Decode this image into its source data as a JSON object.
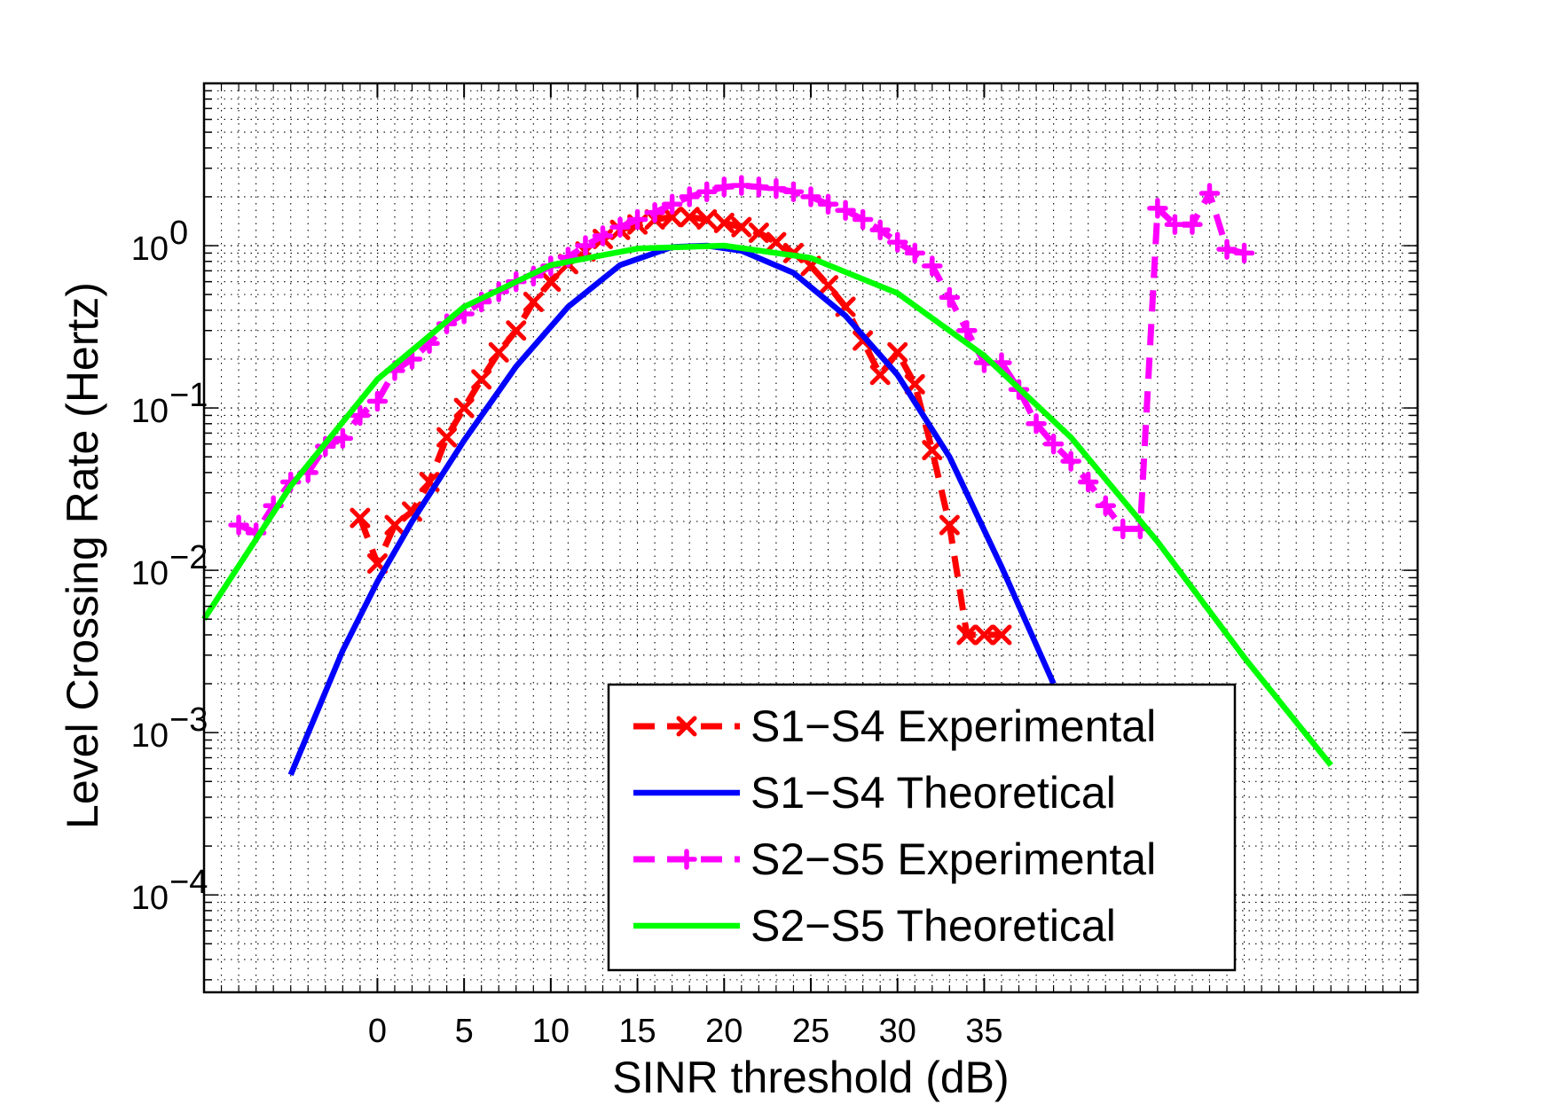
{
  "chart_data": {
    "type": "line",
    "xlabel": "SINR threshold (dB)",
    "ylabel": "Level Crossing Rate (Hertz)",
    "yscale": "log",
    "xlim": [
      -10,
      60
    ],
    "ylim_exp": [
      -4.6,
      1.0
    ],
    "grid": "major and minor, dotted",
    "legend_position": "bottom-right",
    "x_ticks": [
      {
        "value": 0,
        "label": "0"
      },
      {
        "value": 5,
        "label": "5"
      },
      {
        "value": 10,
        "label": "10"
      },
      {
        "value": 15,
        "label": "15"
      },
      {
        "value": 20,
        "label": "20"
      },
      {
        "value": 25,
        "label": "25"
      },
      {
        "value": 30,
        "label": "30"
      },
      {
        "value": 35,
        "label": "35"
      }
    ],
    "y_ticks": [
      {
        "exp": 0,
        "base": "10",
        "sup": "0"
      },
      {
        "exp": -1,
        "base": "10",
        "sup": "−1"
      },
      {
        "exp": -2,
        "base": "10",
        "sup": "−2"
      },
      {
        "exp": -3,
        "base": "10",
        "sup": "−3"
      },
      {
        "exp": -4,
        "base": "10",
        "sup": "−4"
      }
    ],
    "series": [
      {
        "name": "S1−S4 Experimental",
        "color": "#ff0000",
        "line": "dashed",
        "marker": "x",
        "x": [
          -1,
          0,
          1,
          2,
          3,
          4,
          5,
          6,
          7,
          8,
          9,
          10,
          11,
          12,
          13,
          14,
          15,
          16,
          17,
          18,
          19,
          20,
          21,
          22,
          23,
          24,
          25,
          26,
          27,
          28,
          29,
          30,
          31,
          32,
          33,
          34,
          35,
          36
        ],
        "y": [
          0.021,
          0.011,
          0.019,
          0.023,
          0.035,
          0.066,
          0.1,
          0.15,
          0.22,
          0.3,
          0.45,
          0.6,
          0.77,
          0.92,
          1.1,
          1.25,
          1.35,
          1.45,
          1.5,
          1.5,
          1.45,
          1.38,
          1.3,
          1.2,
          1.05,
          0.9,
          0.75,
          0.57,
          0.42,
          0.26,
          0.16,
          0.22,
          0.14,
          0.055,
          0.019,
          0.004,
          0.004,
          0.004
        ]
      },
      {
        "name": "S1−S4 Theoretical",
        "color": "#0000ff",
        "line": "solid",
        "marker": "none",
        "x": [
          -5,
          -2,
          0,
          2,
          5,
          8,
          11,
          14,
          17,
          19,
          21,
          24,
          27,
          30,
          33,
          36,
          39
        ],
        "y": [
          0.00055,
          0.0032,
          0.0085,
          0.02,
          0.063,
          0.18,
          0.42,
          0.76,
          0.98,
          1.0,
          0.93,
          0.68,
          0.37,
          0.16,
          0.05,
          0.0105,
          0.002
        ]
      },
      {
        "name": "S2−S5 Experimental",
        "color": "#ff00ff",
        "line": "dashed",
        "marker": "+",
        "x": [
          -8,
          -7,
          -6,
          -5,
          -4,
          -3,
          -2,
          -1,
          0,
          1,
          2,
          3,
          4,
          5,
          6,
          7,
          8,
          9,
          10,
          11,
          12,
          13,
          14,
          15,
          16,
          17,
          18,
          19,
          20,
          21,
          22,
          23,
          24,
          25,
          26,
          27,
          28,
          29,
          30,
          31,
          32,
          33,
          34,
          35,
          36,
          37,
          38,
          39,
          40,
          41,
          42,
          43,
          44,
          45,
          46,
          47,
          48,
          49,
          50
        ],
        "y": [
          0.019,
          0.017,
          0.025,
          0.035,
          0.04,
          0.058,
          0.065,
          0.09,
          0.11,
          0.17,
          0.2,
          0.25,
          0.33,
          0.38,
          0.45,
          0.52,
          0.6,
          0.65,
          0.75,
          0.85,
          1.0,
          1.15,
          1.3,
          1.45,
          1.6,
          1.8,
          2.0,
          2.15,
          2.3,
          2.35,
          2.3,
          2.25,
          2.15,
          2.0,
          1.8,
          1.65,
          1.45,
          1.25,
          1.05,
          0.9,
          0.75,
          0.48,
          0.3,
          0.19,
          0.19,
          0.13,
          0.08,
          0.06,
          0.047,
          0.035,
          0.025,
          0.018,
          0.018,
          1.7,
          1.35,
          1.35,
          2.1,
          0.95,
          0.9
        ]
      },
      {
        "name": "S2−S5 Theoretical",
        "color": "#00ff00",
        "line": "solid",
        "marker": "none",
        "x": [
          -10,
          -5,
          0,
          5,
          10,
          15,
          20,
          25,
          30,
          35,
          40,
          45,
          50,
          55
        ],
        "y": [
          0.005,
          0.033,
          0.15,
          0.42,
          0.76,
          0.96,
          1.0,
          0.84,
          0.51,
          0.21,
          0.066,
          0.015,
          0.0029,
          0.00063
        ]
      }
    ]
  }
}
